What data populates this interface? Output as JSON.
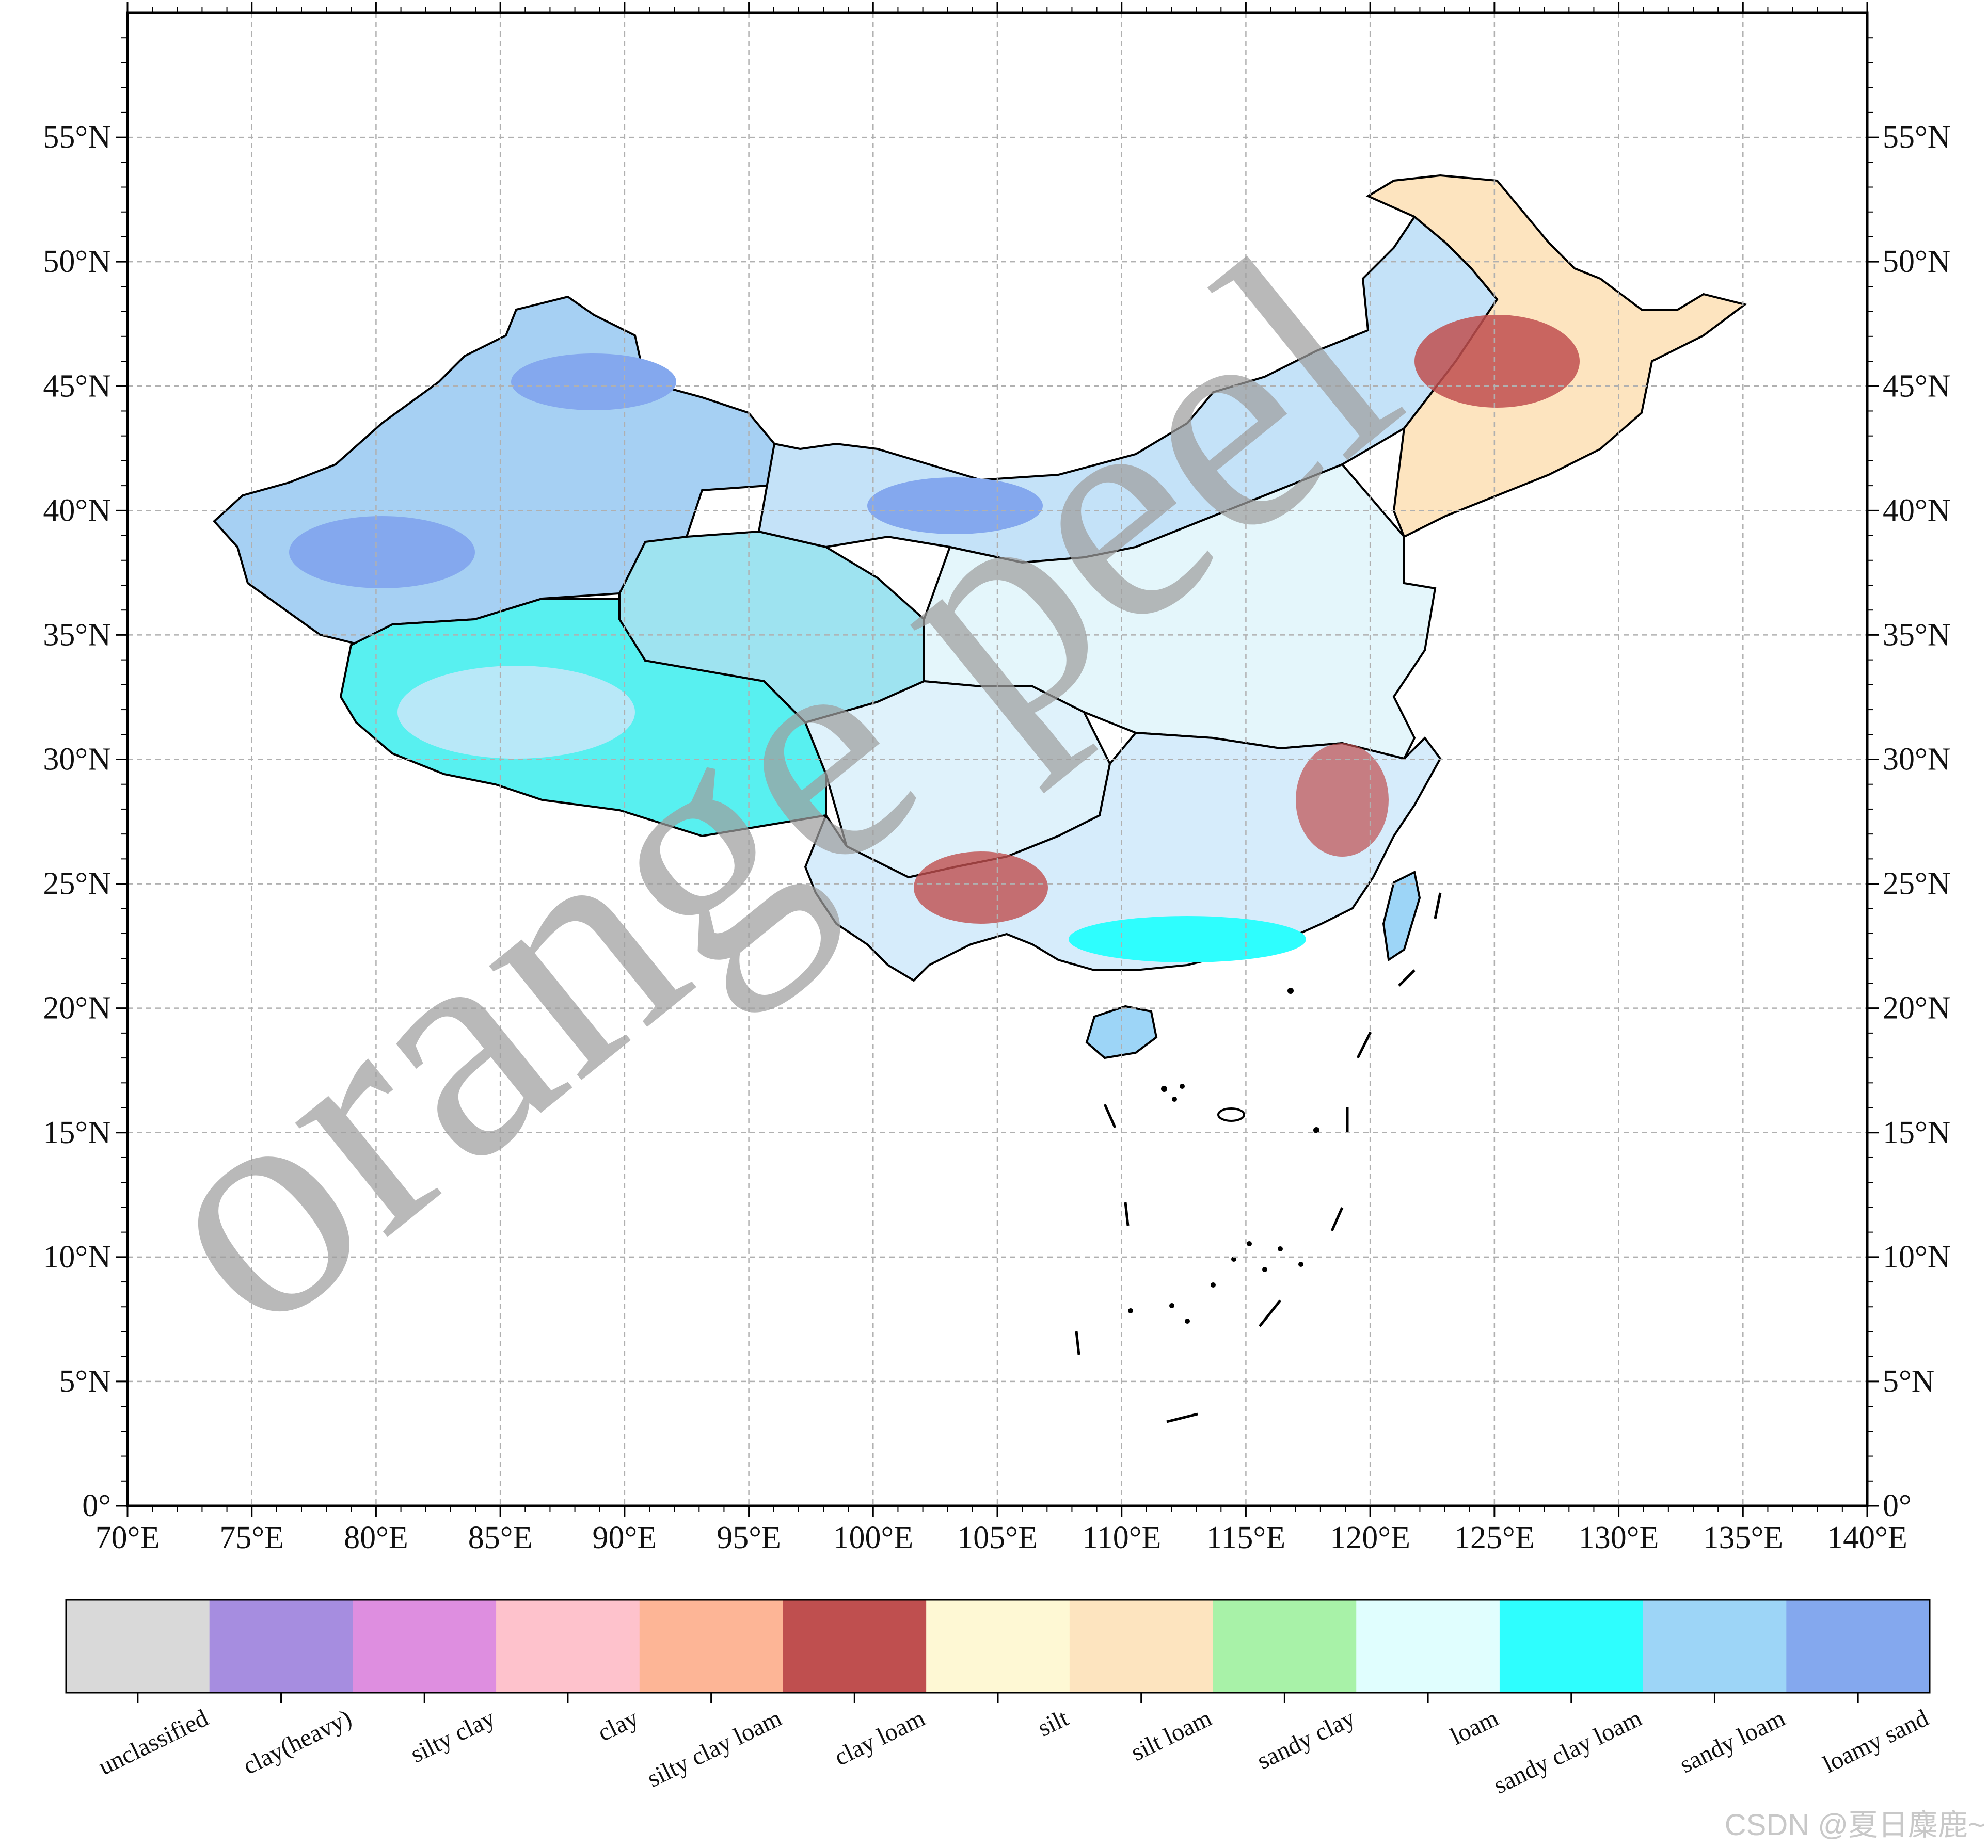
{
  "map": {
    "longitude_ticks": [
      "70°E",
      "75°E",
      "80°E",
      "85°E",
      "90°E",
      "95°E",
      "100°E",
      "105°E",
      "110°E",
      "115°E",
      "120°E",
      "125°E",
      "130°E",
      "135°E",
      "140°E"
    ],
    "latitude_ticks": [
      "0°",
      "5°N",
      "10°N",
      "15°N",
      "20°N",
      "25°N",
      "30°N",
      "35°N",
      "40°N",
      "45°N",
      "50°N",
      "55°N"
    ],
    "lon_range": [
      70,
      140
    ],
    "lat_range": [
      0,
      60
    ],
    "grid": true,
    "border_color": "#000000"
  },
  "legend": {
    "classes": [
      {
        "label": "unclassified",
        "color": "#d9d9d9"
      },
      {
        "label": "clay(heavy)",
        "color": "#a68de0"
      },
      {
        "label": "silty clay",
        "color": "#de8ee0"
      },
      {
        "label": "clay",
        "color": "#fec2cc"
      },
      {
        "label": "silty clay loam",
        "color": "#fdb596"
      },
      {
        "label": "clay loam",
        "color": "#bf4f4f"
      },
      {
        "label": "silt",
        "color": "#fef8d4"
      },
      {
        "label": "silt loam",
        "color": "#fde4bf"
      },
      {
        "label": "sandy clay",
        "color": "#a8f2a8"
      },
      {
        "label": "loam",
        "color": "#e0fefe"
      },
      {
        "label": "sandy clay loam",
        "color": "#2efefe"
      },
      {
        "label": "sandy loam",
        "color": "#9dd5f7"
      },
      {
        "label": "loamy sand",
        "color": "#84a8ee"
      }
    ]
  },
  "watermark": "orange peel",
  "credit": "CSDN @夏日麋鹿~"
}
